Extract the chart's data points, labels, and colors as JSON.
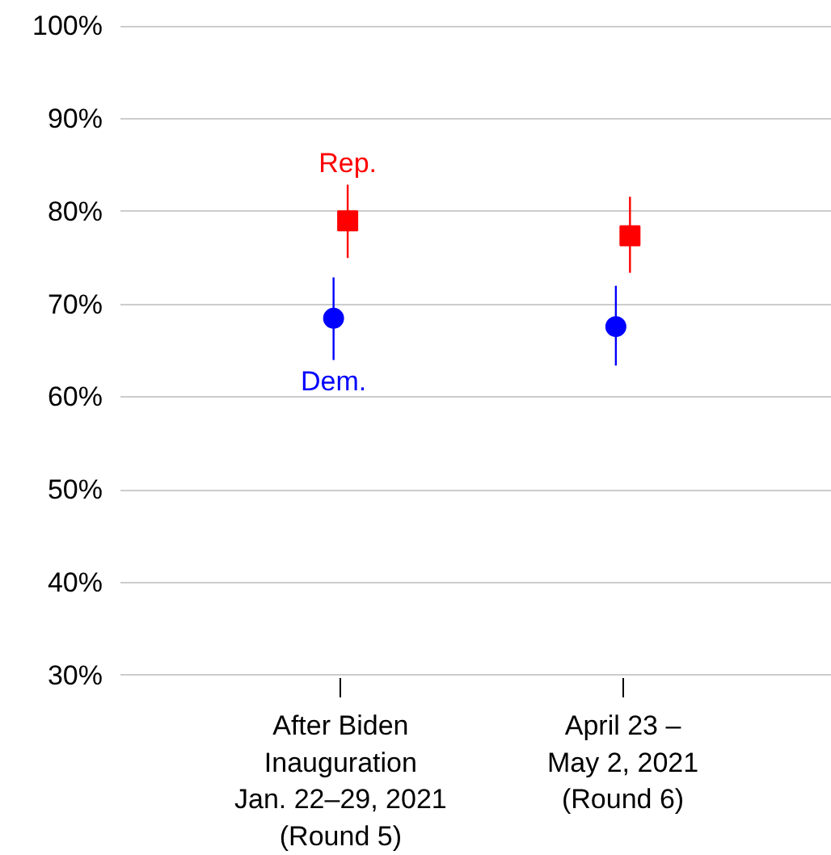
{
  "chart_data": {
    "type": "scatter",
    "categories": [
      "After Biden\nInauguration\nJan. 22–29, 2021\n(Round 5)",
      "April 23 –\nMay 2, 2021\n(Round 6)"
    ],
    "series": [
      {
        "name": "Rep.",
        "color": "#ff0000",
        "marker": "square",
        "values": [
          79.0,
          77.4
        ],
        "errors": [
          [
            75.0,
            82.9
          ],
          [
            73.4,
            81.6
          ]
        ]
      },
      {
        "name": "Dem.",
        "color": "#0000ff",
        "marker": "circle",
        "values": [
          68.5,
          67.6
        ],
        "errors": [
          [
            64.0,
            72.9
          ],
          [
            63.4,
            72.0
          ]
        ]
      }
    ],
    "ylim": [
      30,
      100
    ],
    "yticks": [
      {
        "value": 30,
        "label": "30%"
      },
      {
        "value": 40,
        "label": "40%"
      },
      {
        "value": 50,
        "label": "50%"
      },
      {
        "value": 60,
        "label": "60%"
      },
      {
        "value": 70,
        "label": "70%"
      },
      {
        "value": 80,
        "label": "80%"
      },
      {
        "value": 90,
        "label": "90%"
      },
      {
        "value": 100,
        "label": "100%"
      }
    ],
    "grid": "y",
    "legend": false
  }
}
